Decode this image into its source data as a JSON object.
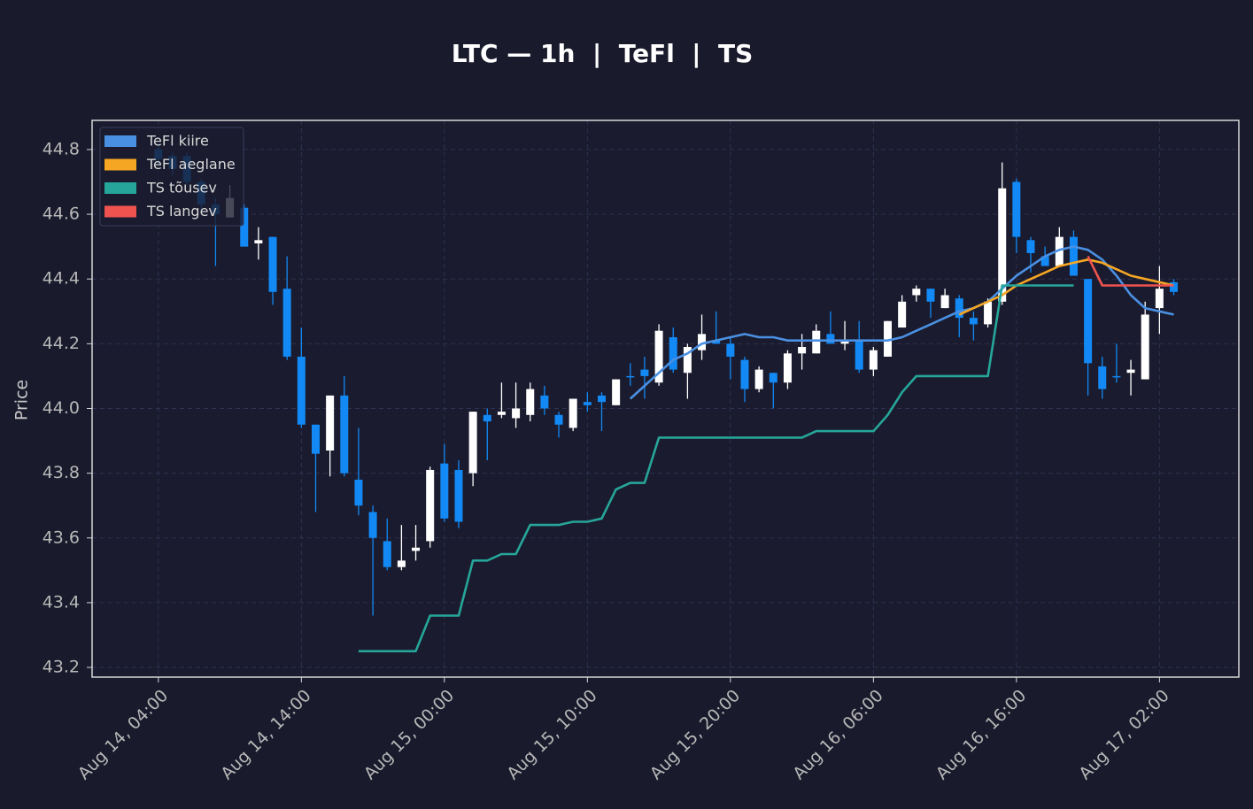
{
  "chart_data": {
    "type": "candlestick",
    "title": "LTC — 1h  |  TeFl  |  TS",
    "y_label": "Price",
    "grid": true,
    "legend": "upper left",
    "up_color": "#ffffff",
    "down_color": "#1289f5",
    "x": [
      "Aug 14, 04:00",
      "Aug 14, 05:00",
      "Aug 14, 06:00",
      "Aug 14, 07:00",
      "Aug 14, 08:00",
      "Aug 14, 09:00",
      "Aug 14, 10:00",
      "Aug 14, 11:00",
      "Aug 14, 12:00",
      "Aug 14, 13:00",
      "Aug 14, 14:00",
      "Aug 14, 15:00",
      "Aug 14, 16:00",
      "Aug 14, 17:00",
      "Aug 14, 18:00",
      "Aug 14, 19:00",
      "Aug 14, 20:00",
      "Aug 14, 21:00",
      "Aug 14, 22:00",
      "Aug 14, 23:00",
      "Aug 15, 00:00",
      "Aug 15, 01:00",
      "Aug 15, 02:00",
      "Aug 15, 03:00",
      "Aug 15, 04:00",
      "Aug 15, 05:00",
      "Aug 15, 06:00",
      "Aug 15, 07:00",
      "Aug 15, 08:00",
      "Aug 15, 09:00",
      "Aug 15, 10:00",
      "Aug 15, 11:00",
      "Aug 15, 12:00",
      "Aug 15, 13:00",
      "Aug 15, 14:00",
      "Aug 15, 15:00",
      "Aug 15, 16:00",
      "Aug 15, 17:00",
      "Aug 15, 18:00",
      "Aug 15, 19:00",
      "Aug 15, 20:00",
      "Aug 15, 21:00",
      "Aug 15, 22:00",
      "Aug 15, 23:00",
      "Aug 16, 00:00",
      "Aug 16, 01:00",
      "Aug 16, 02:00",
      "Aug 16, 03:00",
      "Aug 16, 04:00",
      "Aug 16, 05:00",
      "Aug 16, 06:00",
      "Aug 16, 07:00",
      "Aug 16, 08:00",
      "Aug 16, 09:00",
      "Aug 16, 10:00",
      "Aug 16, 11:00",
      "Aug 16, 12:00",
      "Aug 16, 13:00",
      "Aug 16, 14:00",
      "Aug 16, 15:00",
      "Aug 16, 16:00",
      "Aug 16, 17:00",
      "Aug 16, 18:00",
      "Aug 16, 19:00",
      "Aug 16, 20:00",
      "Aug 16, 21:00",
      "Aug 16, 22:00",
      "Aug 16, 23:00",
      "Aug 17, 00:00",
      "Aug 17, 01:00",
      "Aug 17, 02:00",
      "Aug 17, 03:00"
    ],
    "open": [
      44.8,
      44.78,
      44.78,
      44.7,
      44.63,
      44.59,
      44.62,
      44.51,
      44.53,
      44.37,
      44.16,
      43.95,
      43.87,
      44.04,
      43.78,
      43.68,
      43.59,
      43.51,
      43.56,
      43.59,
      43.83,
      43.81,
      43.8,
      43.98,
      43.98,
      43.97,
      43.98,
      44.04,
      43.98,
      43.94,
      44.02,
      44.04,
      44.01,
      44.1,
      44.12,
      44.08,
      44.22,
      44.11,
      44.18,
      44.21,
      44.2,
      44.15,
      44.06,
      44.11,
      44.08,
      44.17,
      44.17,
      44.23,
      44.2,
      44.21,
      44.12,
      44.16,
      44.25,
      44.35,
      44.37,
      44.31,
      44.34,
      44.28,
      44.26,
      44.33,
      44.7,
      44.52,
      44.47,
      44.44,
      44.53,
      44.4,
      44.13,
      44.1,
      44.11,
      44.09,
      44.31,
      44.39
    ],
    "high": [
      44.82,
      44.79,
      44.79,
      44.71,
      44.65,
      44.69,
      44.63,
      44.56,
      44.53,
      44.47,
      44.25,
      43.95,
      44.04,
      44.1,
      43.94,
      43.7,
      43.66,
      43.64,
      43.64,
      43.82,
      43.89,
      43.84,
      43.99,
      44.0,
      44.08,
      44.08,
      44.08,
      44.07,
      43.99,
      44.03,
      44.05,
      44.05,
      44.09,
      44.14,
      44.16,
      44.26,
      44.25,
      44.2,
      44.29,
      44.3,
      44.22,
      44.16,
      44.13,
      44.11,
      44.18,
      44.23,
      44.26,
      44.3,
      44.27,
      44.27,
      44.19,
      44.27,
      44.35,
      44.38,
      44.37,
      44.37,
      44.35,
      44.3,
      44.34,
      44.76,
      44.71,
      44.53,
      44.5,
      44.56,
      44.55,
      44.4,
      44.16,
      44.2,
      44.15,
      44.33,
      44.44,
      44.4
    ],
    "low": [
      44.75,
      44.72,
      44.69,
      44.61,
      44.44,
      44.59,
      44.5,
      44.46,
      44.32,
      44.15,
      43.94,
      43.68,
      43.79,
      43.79,
      43.67,
      43.36,
      43.5,
      43.5,
      43.53,
      43.57,
      43.65,
      43.63,
      43.76,
      43.84,
      43.97,
      43.94,
      43.96,
      43.98,
      43.91,
      43.93,
      43.99,
      43.93,
      44.01,
      44.07,
      44.03,
      44.07,
      44.11,
      44.03,
      44.15,
      44.2,
      44.09,
      44.02,
      44.05,
      44.0,
      44.06,
      44.12,
      44.17,
      44.2,
      44.18,
      44.11,
      44.1,
      44.16,
      44.25,
      44.33,
      44.28,
      44.31,
      44.22,
      44.21,
      44.25,
      44.32,
      44.48,
      44.42,
      44.44,
      44.44,
      44.41,
      44.04,
      44.03,
      44.08,
      44.04,
      44.09,
      44.23,
      44.35
    ],
    "close": [
      44.77,
      44.74,
      44.7,
      44.63,
      44.6,
      44.65,
      44.5,
      44.52,
      44.36,
      44.16,
      43.95,
      43.86,
      44.04,
      43.8,
      43.7,
      43.6,
      43.51,
      43.53,
      43.57,
      43.81,
      43.66,
      43.65,
      43.99,
      43.96,
      43.99,
      44.0,
      44.06,
      44.0,
      43.95,
      44.03,
      44.01,
      44.02,
      44.09,
      44.1,
      44.1,
      44.24,
      44.12,
      44.19,
      44.23,
      44.2,
      44.16,
      44.06,
      44.12,
      44.08,
      44.17,
      44.19,
      44.24,
      44.2,
      44.21,
      44.12,
      44.18,
      44.27,
      44.33,
      44.37,
      44.33,
      44.35,
      44.28,
      44.26,
      44.33,
      44.68,
      44.53,
      44.48,
      44.44,
      44.53,
      44.41,
      44.14,
      44.06,
      44.1,
      44.12,
      44.29,
      44.37,
      44.36
    ],
    "series": [
      {
        "name": "TeFl kiire",
        "color": "#4a90e2",
        "values": [
          null,
          null,
          null,
          null,
          null,
          null,
          null,
          null,
          null,
          null,
          null,
          null,
          null,
          null,
          null,
          null,
          null,
          null,
          null,
          null,
          null,
          null,
          null,
          null,
          null,
          null,
          null,
          null,
          null,
          null,
          null,
          null,
          null,
          44.03,
          44.07,
          44.11,
          44.15,
          44.17,
          44.2,
          44.21,
          44.22,
          44.23,
          44.22,
          44.22,
          44.21,
          44.21,
          44.21,
          44.21,
          44.21,
          44.21,
          44.21,
          44.21,
          44.22,
          44.24,
          44.26,
          44.28,
          44.3,
          44.31,
          44.33,
          44.37,
          44.41,
          44.44,
          44.47,
          44.49,
          44.5,
          44.49,
          44.46,
          44.41,
          44.35,
          44.31,
          44.3,
          44.29
        ]
      },
      {
        "name": "TeFl aeglane",
        "color": "#f5a623",
        "values": [
          null,
          null,
          null,
          null,
          null,
          null,
          null,
          null,
          null,
          null,
          null,
          null,
          null,
          null,
          null,
          null,
          null,
          null,
          null,
          null,
          null,
          null,
          null,
          null,
          null,
          null,
          null,
          null,
          null,
          null,
          null,
          null,
          null,
          null,
          null,
          null,
          null,
          null,
          null,
          null,
          null,
          null,
          null,
          null,
          null,
          null,
          null,
          null,
          null,
          null,
          null,
          null,
          null,
          null,
          null,
          null,
          44.29,
          44.31,
          44.33,
          44.35,
          44.38,
          44.4,
          44.42,
          44.44,
          44.45,
          44.46,
          44.45,
          44.43,
          44.41,
          44.4,
          44.39,
          44.38
        ]
      },
      {
        "name": "TS tõusev",
        "color": "#26a69a",
        "values": [
          null,
          null,
          null,
          null,
          null,
          null,
          null,
          null,
          null,
          null,
          null,
          null,
          null,
          null,
          43.25,
          43.25,
          43.25,
          43.25,
          43.25,
          43.36,
          43.36,
          43.36,
          43.53,
          43.53,
          43.55,
          43.55,
          43.64,
          43.64,
          43.64,
          43.65,
          43.65,
          43.66,
          43.75,
          43.77,
          43.77,
          43.91,
          43.91,
          43.91,
          43.91,
          43.91,
          43.91,
          43.91,
          43.91,
          43.91,
          43.91,
          43.91,
          43.93,
          43.93,
          43.93,
          43.93,
          43.93,
          43.98,
          44.05,
          44.1,
          44.1,
          44.1,
          44.1,
          44.1,
          44.1,
          44.38,
          44.38,
          44.38,
          44.38,
          44.38,
          44.38,
          null,
          null,
          null,
          null,
          null,
          null,
          null
        ]
      },
      {
        "name": "TS langev",
        "color": "#ef5350",
        "values": [
          null,
          null,
          null,
          null,
          null,
          null,
          null,
          null,
          null,
          null,
          null,
          null,
          null,
          null,
          null,
          null,
          null,
          null,
          null,
          null,
          null,
          null,
          null,
          null,
          null,
          null,
          null,
          null,
          null,
          null,
          null,
          null,
          null,
          null,
          null,
          null,
          null,
          null,
          null,
          null,
          null,
          null,
          null,
          null,
          null,
          null,
          null,
          null,
          null,
          null,
          null,
          null,
          null,
          null,
          null,
          null,
          null,
          null,
          null,
          null,
          null,
          null,
          null,
          null,
          null,
          44.47,
          44.38,
          44.38,
          44.38,
          44.38,
          44.38,
          44.38
        ]
      }
    ],
    "xlim": [
      "Aug 13, 23:22",
      "Aug 17, 07:33"
    ],
    "xticks": [
      "Aug 14, 04:00",
      "Aug 14, 14:00",
      "Aug 15, 00:00",
      "Aug 15, 10:00",
      "Aug 15, 20:00",
      "Aug 16, 06:00",
      "Aug 16, 16:00",
      "Aug 17, 02:00"
    ],
    "ylim": [
      43.17,
      44.89
    ],
    "yticks": [
      43.2,
      43.4,
      43.6,
      43.8,
      {
        "value": 44,
        "label": "44.0"
      },
      44.2,
      44.4,
      44.6,
      44.8
    ]
  }
}
